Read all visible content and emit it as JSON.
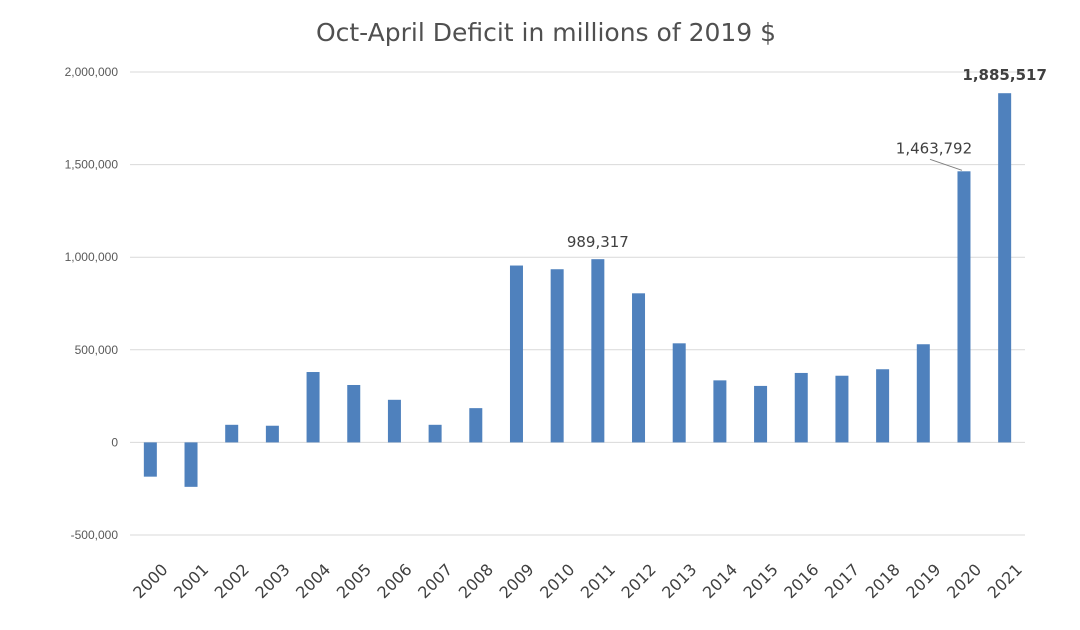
{
  "chart_data": {
    "type": "bar",
    "title": "Oct-April Deficit in millions of 2019 $",
    "xlabel": "",
    "ylabel": "",
    "ylim": [
      -500000,
      2000000
    ],
    "yticks": [
      "-500,000",
      "0",
      "500,000",
      "1,000,000",
      "1,500,000",
      "2,000,000"
    ],
    "grid": true,
    "bar_color": "#4f81bd",
    "categories": [
      "2000",
      "2001",
      "2002",
      "2003",
      "2004",
      "2005",
      "2006",
      "2007",
      "2008",
      "2009",
      "2010",
      "2011",
      "2012",
      "2013",
      "2014",
      "2015",
      "2016",
      "2017",
      "2018",
      "2019",
      "2020",
      "2021"
    ],
    "values": [
      -185000,
      -240000,
      95000,
      90000,
      380000,
      310000,
      230000,
      95000,
      185000,
      955000,
      935000,
      989317,
      805000,
      535000,
      335000,
      305000,
      375000,
      360000,
      395000,
      530000,
      1463792,
      1885517
    ],
    "data_labels": [
      {
        "category": "2011",
        "text": "989,317",
        "bold": false
      },
      {
        "category": "2020",
        "text": "1,463,792",
        "bold": false
      },
      {
        "category": "2021",
        "text": "1,885,517",
        "bold": true
      }
    ]
  }
}
